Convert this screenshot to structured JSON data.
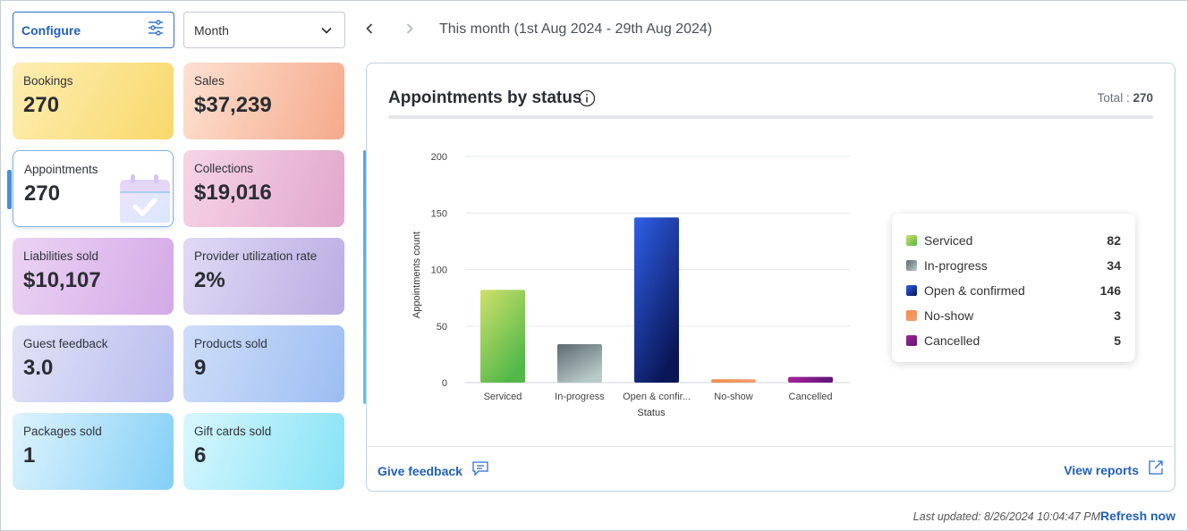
{
  "toolbar": {
    "configure_label": "Configure",
    "period_value": "Month",
    "range_label": "This month (1st Aug 2024 - 29th Aug 2024)"
  },
  "tiles": [
    {
      "label": "Bookings",
      "value": "270"
    },
    {
      "label": "Sales",
      "value": "$37,239"
    },
    {
      "label": "Appointments",
      "value": "270"
    },
    {
      "label": "Collections",
      "value": "$19,016"
    },
    {
      "label": "Liabilities sold",
      "value": "$10,107"
    },
    {
      "label": "Provider utilization rate",
      "value": "2%"
    },
    {
      "label": "Guest feedback",
      "value": "3.0"
    },
    {
      "label": "Products sold",
      "value": "9"
    },
    {
      "label": "Packages sold",
      "value": "1"
    },
    {
      "label": "Gift cards sold",
      "value": "6"
    }
  ],
  "card": {
    "title": "Appointments by status",
    "total_label": "Total :",
    "total_value": "270",
    "feedback_label": "Give feedback",
    "reports_label": "View reports"
  },
  "chart_data": {
    "type": "bar",
    "categories": [
      "Serviced",
      "In-progress",
      "Open & confir...",
      "No-show",
      "Cancelled"
    ],
    "values": [
      82,
      34,
      146,
      3,
      5
    ],
    "xlabel": "Status",
    "ylabel": "Appointments count",
    "ylim": [
      0,
      200
    ],
    "yticks": [
      "0",
      "50",
      "100",
      "150",
      "200"
    ],
    "grid": true,
    "legend_position": "right"
  },
  "legend": [
    {
      "name": "Serviced",
      "count": "82",
      "color": "#6cc04a"
    },
    {
      "name": "In-progress",
      "count": "34",
      "color": "#6b7b80"
    },
    {
      "name": "Open & confirmed",
      "count": "146",
      "color": "#1d3a9e"
    },
    {
      "name": "No-show",
      "count": "3",
      "color": "#f08a4b"
    },
    {
      "name": "Cancelled",
      "count": "5",
      "color": "#8b1a8f"
    }
  ],
  "footer": {
    "last_updated": "Last updated: 8/26/2024 10:04:47 PM",
    "refresh_label": "Refresh now"
  }
}
